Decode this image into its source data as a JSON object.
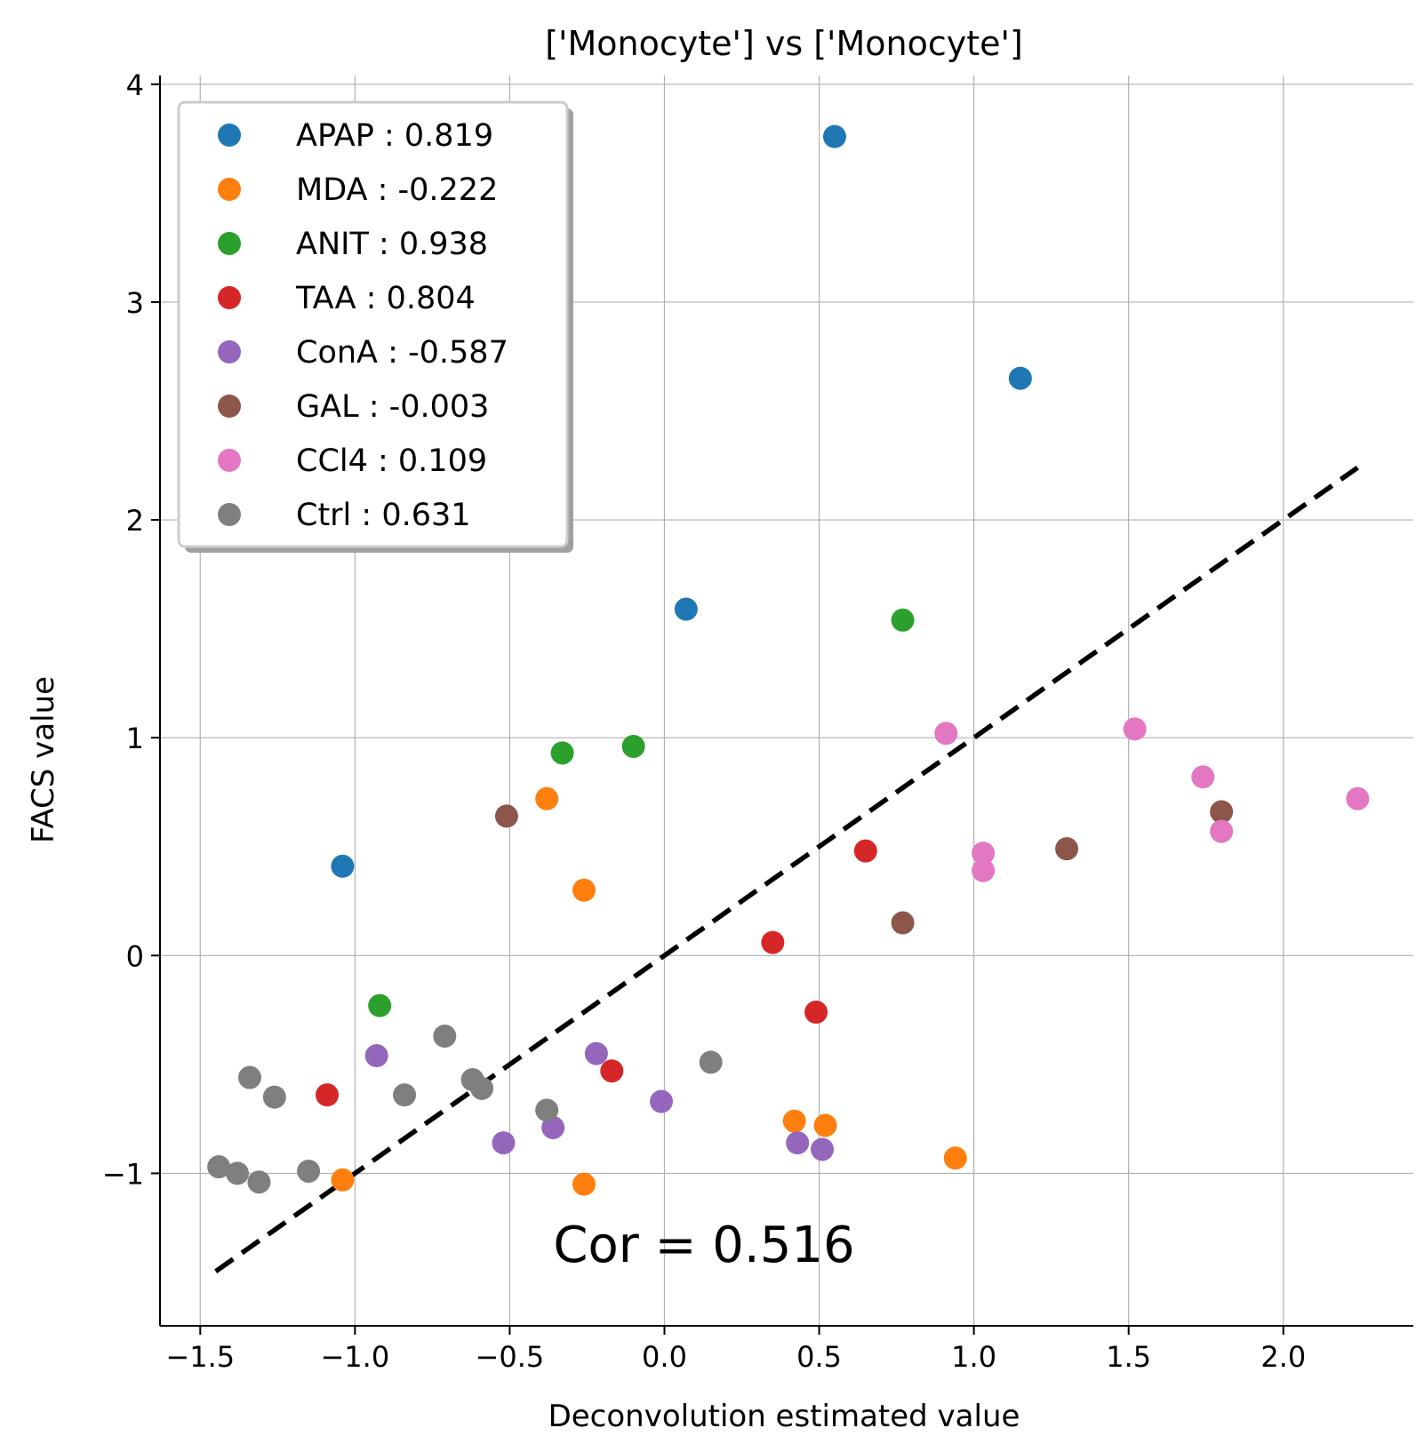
{
  "chart_data": {
    "type": "scatter",
    "title": "['Monocyte'] vs ['Monocyte']",
    "xlabel": "Deconvolution estimated value",
    "ylabel": "FACS value",
    "xlim": [
      -1.63,
      2.42
    ],
    "ylim": [
      -1.7,
      4.04
    ],
    "xticks": [
      -1.5,
      -1.0,
      -0.5,
      0.0,
      0.5,
      1.0,
      1.5,
      2.0
    ],
    "xtick_labels": [
      "−1.5",
      "−1.0",
      "−0.5",
      "0.0",
      "0.5",
      "1.0",
      "1.5",
      "2.0"
    ],
    "yticks": [
      -1,
      0,
      1,
      2,
      3,
      4
    ],
    "ytick_labels": [
      "−1",
      "0",
      "1",
      "2",
      "3",
      "4"
    ],
    "grid": true,
    "legend_position": "top-left",
    "annotation": "Cor = 0.516",
    "diagonal_line": {
      "x": [
        -1.45,
        2.24
      ],
      "y": [
        -1.45,
        2.24
      ],
      "style": "dashed",
      "color": "#000000"
    },
    "series": [
      {
        "name": "APAP : 0.819",
        "color": "#1f77b4",
        "points": [
          [
            0.55,
            3.76
          ],
          [
            1.15,
            2.65
          ],
          [
            0.07,
            1.59
          ],
          [
            -1.04,
            0.41
          ]
        ]
      },
      {
        "name": "MDA : -0.222",
        "color": "#ff7f0e",
        "points": [
          [
            -0.38,
            0.72
          ],
          [
            -0.26,
            0.3
          ],
          [
            0.42,
            -0.76
          ],
          [
            0.52,
            -0.78
          ],
          [
            0.94,
            -0.93
          ],
          [
            -1.04,
            -1.03
          ],
          [
            -0.26,
            -1.05
          ]
        ]
      },
      {
        "name": "ANIT : 0.938",
        "color": "#2ca02c",
        "points": [
          [
            0.77,
            1.54
          ],
          [
            -0.33,
            0.93
          ],
          [
            -0.1,
            0.96
          ],
          [
            -0.92,
            -0.23
          ]
        ]
      },
      {
        "name": "TAA : 0.804",
        "color": "#d62728",
        "points": [
          [
            0.65,
            0.48
          ],
          [
            0.35,
            0.06
          ],
          [
            0.49,
            -0.26
          ],
          [
            -0.17,
            -0.53
          ],
          [
            -1.09,
            -0.64
          ]
        ]
      },
      {
        "name": "ConA : -0.587",
        "color": "#9467bd",
        "points": [
          [
            -0.93,
            -0.46
          ],
          [
            -0.22,
            -0.45
          ],
          [
            -0.01,
            -0.67
          ],
          [
            -0.36,
            -0.79
          ],
          [
            -0.52,
            -0.86
          ],
          [
            0.43,
            -0.86
          ],
          [
            0.51,
            -0.89
          ]
        ]
      },
      {
        "name": "GAL : -0.003",
        "color": "#8c564b",
        "points": [
          [
            -0.51,
            0.64
          ],
          [
            0.77,
            0.15
          ],
          [
            1.3,
            0.49
          ],
          [
            1.8,
            0.66
          ]
        ]
      },
      {
        "name": "CCl4 : 0.109",
        "color": "#e377c2",
        "points": [
          [
            0.91,
            1.02
          ],
          [
            1.52,
            1.04
          ],
          [
            1.74,
            0.82
          ],
          [
            1.8,
            0.57
          ],
          [
            2.24,
            0.72
          ],
          [
            1.03,
            0.47
          ],
          [
            1.03,
            0.39
          ]
        ]
      },
      {
        "name": "Ctrl : 0.631",
        "color": "#7f7f7f",
        "points": [
          [
            -1.34,
            -0.56
          ],
          [
            -1.26,
            -0.65
          ],
          [
            -0.84,
            -0.64
          ],
          [
            -0.71,
            -0.37
          ],
          [
            -0.62,
            -0.57
          ],
          [
            -0.59,
            -0.61
          ],
          [
            -0.38,
            -0.71
          ],
          [
            0.15,
            -0.49
          ],
          [
            -1.44,
            -0.97
          ],
          [
            -1.38,
            -1.0
          ],
          [
            -1.31,
            -1.04
          ],
          [
            -1.15,
            -0.99
          ]
        ]
      }
    ]
  }
}
